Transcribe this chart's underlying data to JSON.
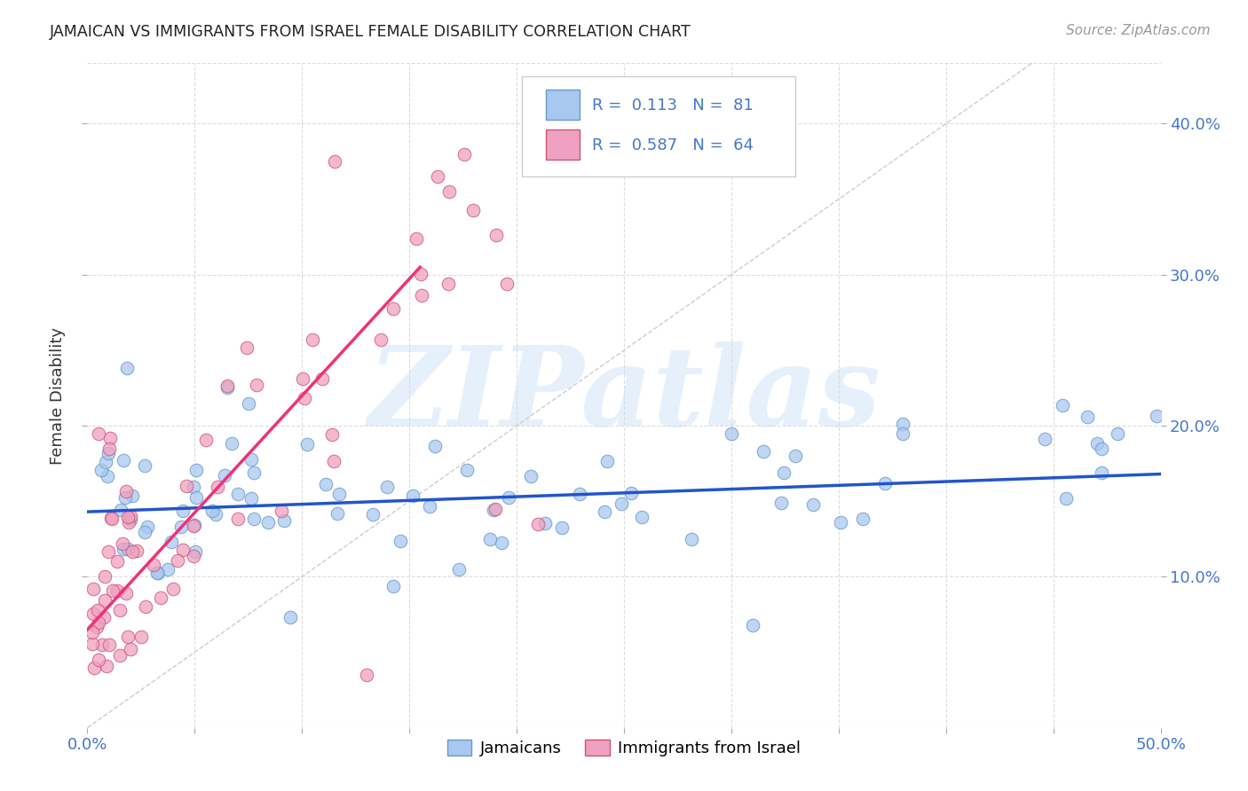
{
  "title": "JAMAICAN VS IMMIGRANTS FROM ISRAEL FEMALE DISABILITY CORRELATION CHART",
  "source": "Source: ZipAtlas.com",
  "ylabel": "Female Disability",
  "background_color": "#ffffff",
  "grid_color": "#dddddd",
  "watermark": "ZIPatlas",
  "xlim": [
    0.0,
    0.5
  ],
  "ylim": [
    0.0,
    0.44
  ],
  "yticks": [
    0.1,
    0.2,
    0.3,
    0.4
  ],
  "ytick_labels_right": [
    "10.0%",
    "20.0%",
    "30.0%",
    "40.0%"
  ],
  "xtick_positions": [
    0.0,
    0.05,
    0.1,
    0.15,
    0.2,
    0.25,
    0.3,
    0.35,
    0.4,
    0.45,
    0.5
  ],
  "xtick_labels": [
    "0.0%",
    "",
    "",
    "",
    "",
    "",
    "",
    "",
    "",
    "",
    "50.0%"
  ],
  "jamaicans_color": "#a8c8f0",
  "israel_color": "#f0a0c0",
  "trend_blue_color": "#2255cc",
  "trend_pink_color": "#ee3377",
  "diagonal_color": "#cccccc",
  "legend_blue_color": "#a8c8f0",
  "legend_pink_color": "#f0a0c0",
  "jam_trend_x_start": 0.0,
  "jam_trend_x_end": 0.5,
  "jam_trend_y_start": 0.143,
  "jam_trend_y_end": 0.168,
  "isr_trend_x_start": 0.0,
  "isr_trend_x_end": 0.155,
  "isr_trend_y_start": 0.065,
  "isr_trend_y_end": 0.305
}
